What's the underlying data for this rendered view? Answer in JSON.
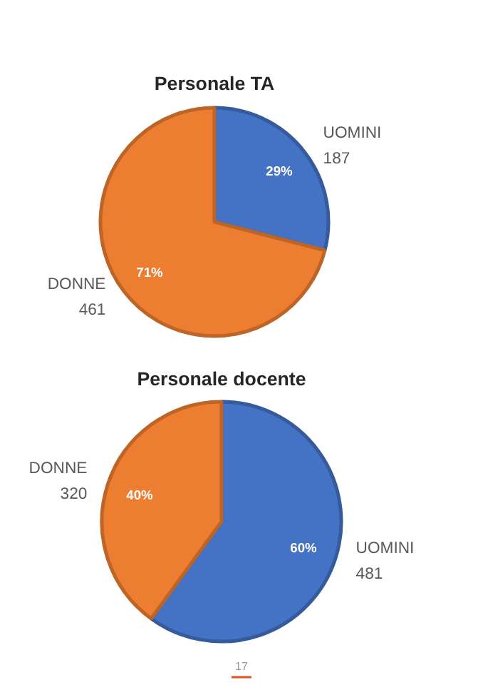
{
  "chart_data": [
    {
      "type": "pie",
      "title": "Personale TA",
      "categories": [
        "UOMINI\n187",
        "DONNE\n461"
      ],
      "values": [
        29,
        71
      ],
      "colors": [
        "#4472c4",
        "#ed7d31"
      ],
      "value_labels": [
        "29%",
        "71%"
      ]
    },
    {
      "type": "pie",
      "title": "Personale docente",
      "categories": [
        "UOMINI\n481",
        "DONNE\n320"
      ],
      "values": [
        60,
        40
      ],
      "colors": [
        "#4472c4",
        "#ed7d31"
      ],
      "value_labels": [
        "60%",
        "40%"
      ],
      "annotations": [
        "17"
      ]
    }
  ]
}
